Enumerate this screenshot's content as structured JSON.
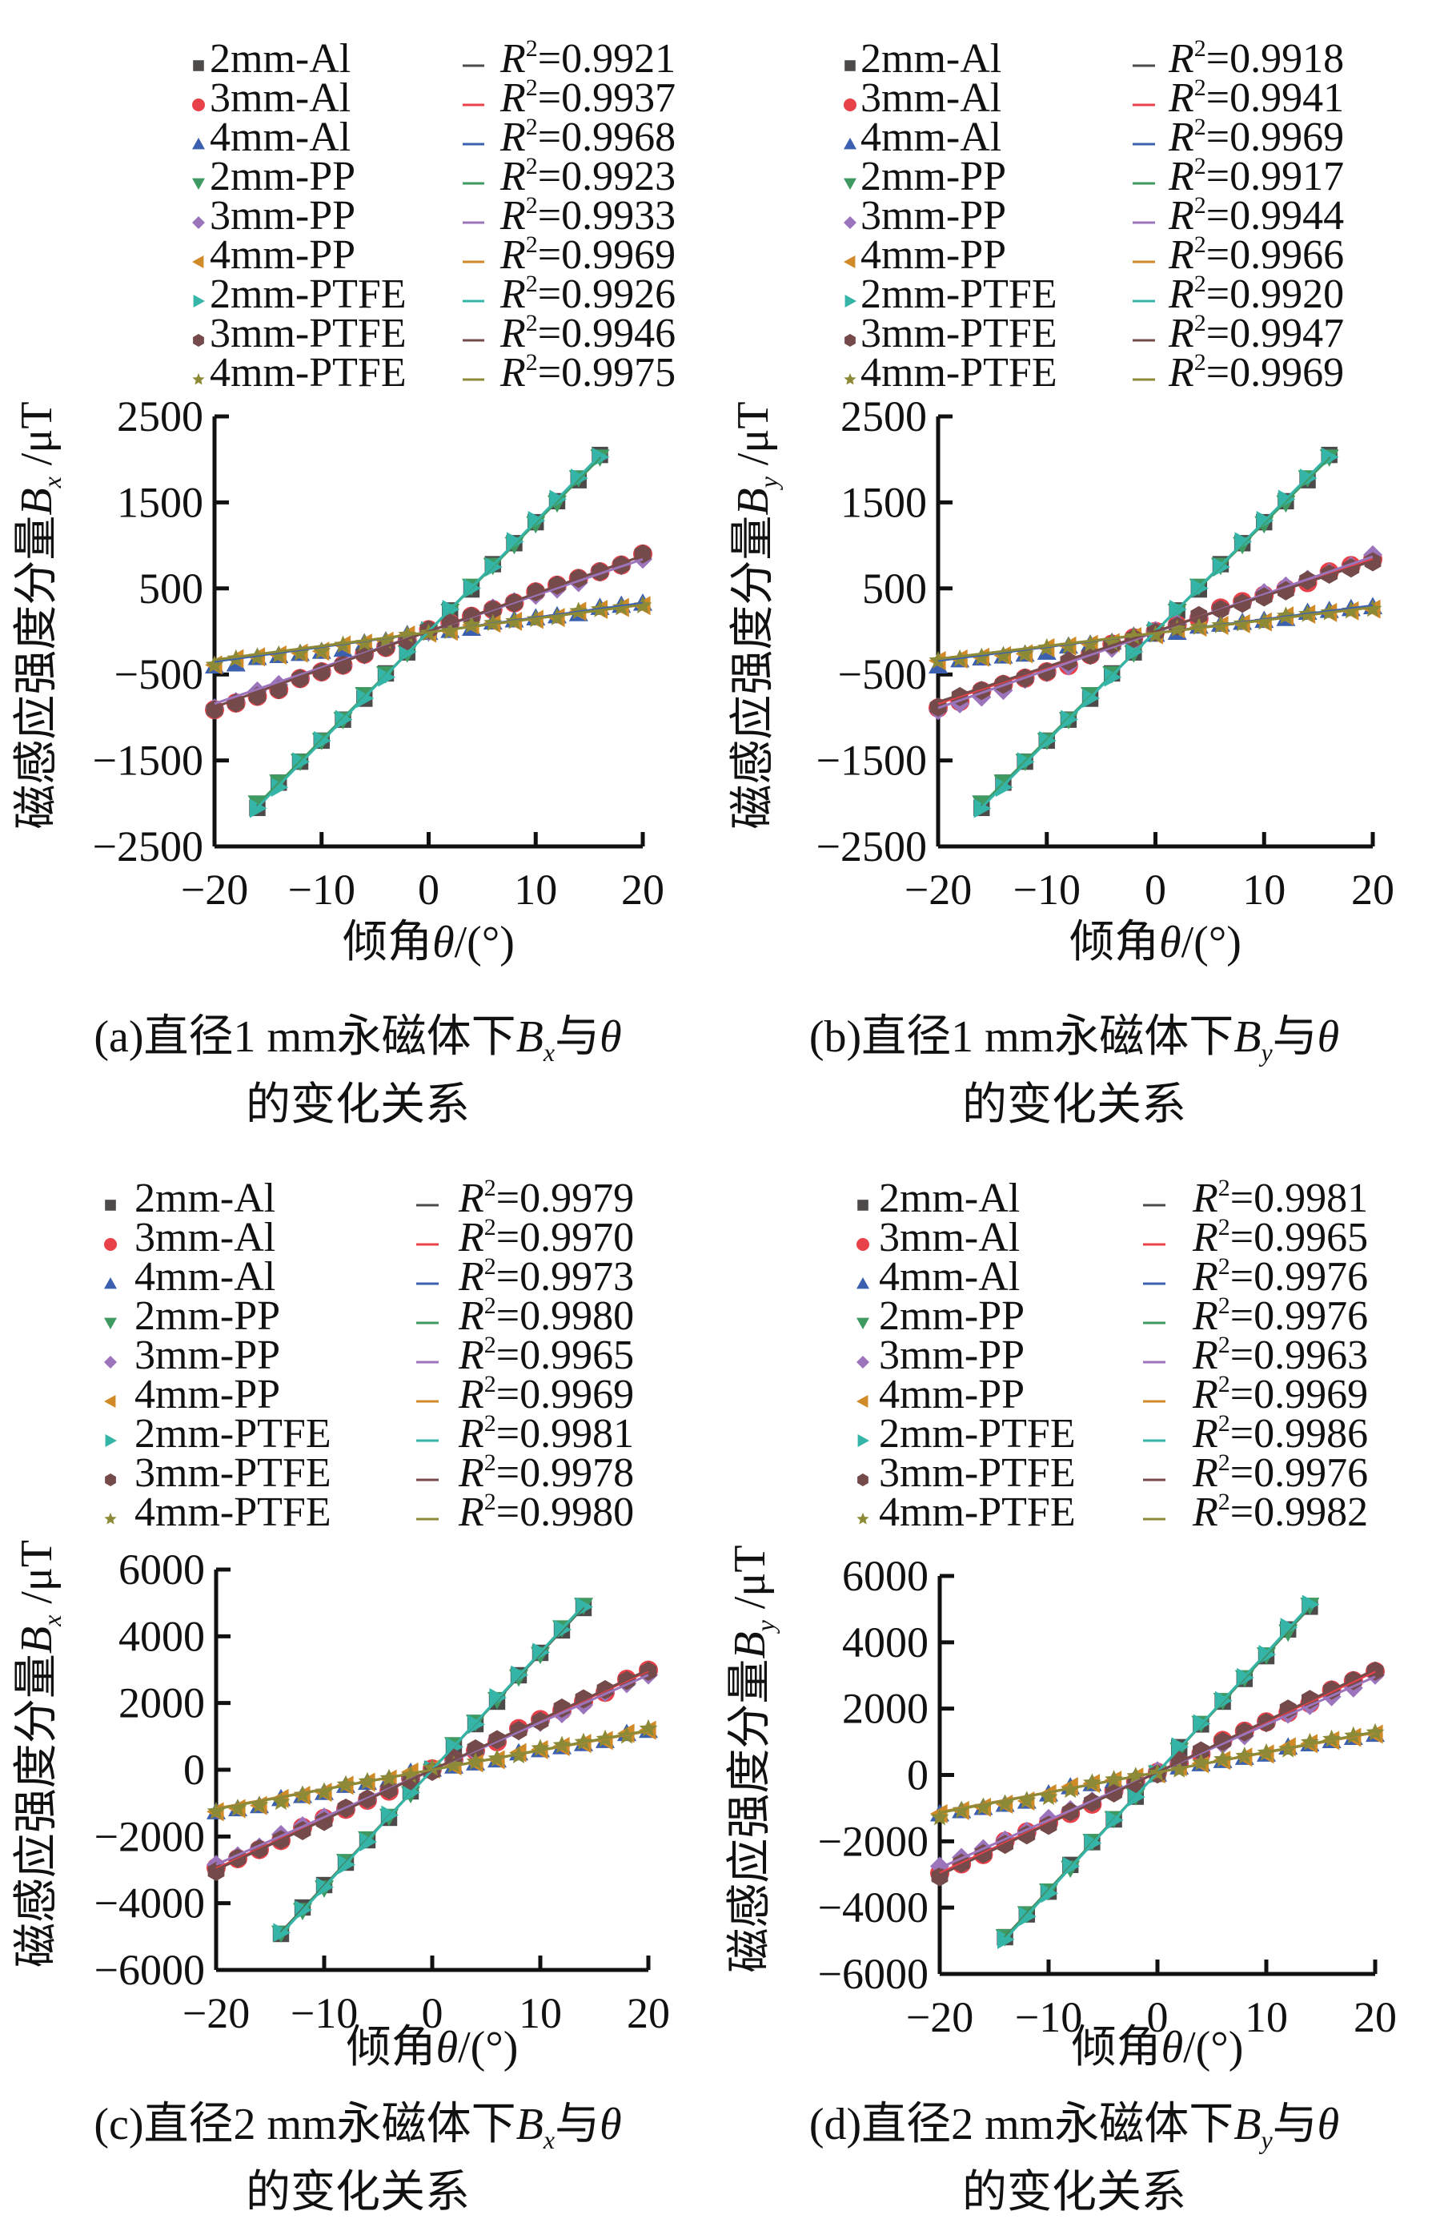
{
  "figure": {
    "series_style": [
      {
        "name": "2mm-Al",
        "marker": "square",
        "color": "#4d4a4a"
      },
      {
        "name": "3mm-Al",
        "marker": "circle",
        "color": "#e8414a"
      },
      {
        "name": "4mm-Al",
        "marker": "triangle-up",
        "color": "#3b60b0"
      },
      {
        "name": "2mm-PP",
        "marker": "triangle-down",
        "color": "#3f9a62"
      },
      {
        "name": "3mm-PP",
        "marker": "diamond",
        "color": "#9b74bb"
      },
      {
        "name": "4mm-PP",
        "marker": "triangle-left",
        "color": "#d08a28"
      },
      {
        "name": "2mm-PTFE",
        "marker": "triangle-right",
        "color": "#35b4a8"
      },
      {
        "name": "3mm-PTFE",
        "marker": "hexagon",
        "color": "#744a4a"
      },
      {
        "name": "4mm-PTFE",
        "marker": "star",
        "color": "#8c8a36"
      }
    ]
  },
  "chart_data": [
    {
      "id": "a",
      "type": "scatter",
      "title": "",
      "caption_prefix": "(a)直径1 mm永磁体下",
      "caption_var": "B",
      "caption_sub": "x",
      "caption_mid": "与",
      "caption_theta": "θ",
      "caption_line2": "的变化关系",
      "xlabel": "倾角θ/(°)",
      "xlabel_cn": "倾角",
      "xlabel_var": "θ",
      "xlabel_unit": "/(°)",
      "ylabel_cn": "磁感应强度分量",
      "ylabel_var": "B",
      "ylabel_sub": "x",
      "ylabel_unit": " /μT",
      "xlim": [
        -20,
        20
      ],
      "ylim": [
        -2500,
        2500
      ],
      "xticks": [
        -20,
        -10,
        0,
        10,
        20
      ],
      "yticks": [
        -2500,
        -1500,
        -500,
        500,
        1500,
        2500
      ],
      "ytick_labels": [
        "−2500",
        "−1500",
        "−500",
        "500",
        "1500",
        "2500"
      ],
      "xtick_labels": [
        "−20",
        "−10",
        "0",
        "10",
        "20"
      ],
      "grid": false,
      "legend_position": "top",
      "r2": [
        "0.9921",
        "0.9937",
        "0.9968",
        "0.9923",
        "0.9933",
        "0.9969",
        "0.9926",
        "0.9946",
        "0.9975"
      ],
      "series": [
        {
          "name": "2mm-Al",
          "x_range": [
            -16,
            16
          ],
          "step": 2,
          "slope": 127,
          "intercept": 0
        },
        {
          "name": "3mm-Al",
          "x_range": [
            -20,
            20
          ],
          "step": 2,
          "slope": 44,
          "intercept": 0
        },
        {
          "name": "4mm-Al",
          "x_range": [
            -20,
            20
          ],
          "step": 2,
          "slope": 17,
          "intercept": -10
        },
        {
          "name": "2mm-PP",
          "x_range": [
            -16,
            16
          ],
          "step": 2,
          "slope": 126,
          "intercept": 0
        },
        {
          "name": "3mm-PP",
          "x_range": [
            -20,
            20
          ],
          "step": 2,
          "slope": 42,
          "intercept": 0
        },
        {
          "name": "4mm-PP",
          "x_range": [
            -20,
            20
          ],
          "step": 2,
          "slope": 16,
          "intercept": -10
        },
        {
          "name": "2mm-PTFE",
          "x_range": [
            -16,
            16
          ],
          "step": 2,
          "slope": 128,
          "intercept": 0
        },
        {
          "name": "3mm-PTFE",
          "x_range": [
            -20,
            20
          ],
          "step": 2,
          "slope": 44,
          "intercept": 0
        },
        {
          "name": "4mm-PTFE",
          "x_range": [
            -20,
            20
          ],
          "step": 2,
          "slope": 16,
          "intercept": -10
        }
      ]
    },
    {
      "id": "b",
      "type": "scatter",
      "title": "",
      "caption_prefix": "(b)直径1 mm永磁体下",
      "caption_var": "B",
      "caption_sub": "y",
      "caption_mid": "与",
      "caption_theta": "θ",
      "caption_line2": "的变化关系",
      "xlabel": "倾角θ/(°)",
      "xlabel_cn": "倾角",
      "xlabel_var": "θ",
      "xlabel_unit": "/(°)",
      "ylabel_cn": "磁感应强度分量",
      "ylabel_var": "B",
      "ylabel_sub": "y",
      "ylabel_unit": " /μT",
      "xlim": [
        -20,
        20
      ],
      "ylim": [
        -2500,
        2500
      ],
      "xticks": [
        -20,
        -10,
        0,
        10,
        20
      ],
      "yticks": [
        -2500,
        -1500,
        -500,
        500,
        1500,
        2500
      ],
      "ytick_labels": [
        "−2500",
        "−1500",
        "−500",
        "500",
        "1500",
        "2500"
      ],
      "xtick_labels": [
        "−20",
        "−10",
        "0",
        "10",
        "20"
      ],
      "grid": false,
      "legend_position": "top",
      "r2": [
        "0.9918",
        "0.9941",
        "0.9969",
        "0.9917",
        "0.9944",
        "0.9966",
        "0.9920",
        "0.9947",
        "0.9969"
      ],
      "series": [
        {
          "name": "2mm-Al",
          "x_range": [
            -16,
            16
          ],
          "step": 2,
          "slope": 127,
          "intercept": 0
        },
        {
          "name": "3mm-Al",
          "x_range": [
            -20,
            20
          ],
          "step": 2,
          "slope": 42,
          "intercept": 0
        },
        {
          "name": "4mm-Al",
          "x_range": [
            -20,
            20
          ],
          "step": 2,
          "slope": 16,
          "intercept": -20
        },
        {
          "name": "2mm-PP",
          "x_range": [
            -16,
            16
          ],
          "step": 2,
          "slope": 126,
          "intercept": 0
        },
        {
          "name": "3mm-PP",
          "x_range": [
            -20,
            20
          ],
          "step": 2,
          "slope": 44,
          "intercept": -10
        },
        {
          "name": "4mm-PP",
          "x_range": [
            -20,
            20
          ],
          "step": 2,
          "slope": 15,
          "intercept": -20
        },
        {
          "name": "2mm-PTFE",
          "x_range": [
            -16,
            16
          ],
          "step": 2,
          "slope": 128,
          "intercept": 0
        },
        {
          "name": "3mm-PTFE",
          "x_range": [
            -20,
            20
          ],
          "step": 2,
          "slope": 41,
          "intercept": 0
        },
        {
          "name": "4mm-PTFE",
          "x_range": [
            -20,
            20
          ],
          "step": 2,
          "slope": 15,
          "intercept": -20
        }
      ]
    },
    {
      "id": "c",
      "type": "scatter",
      "title": "",
      "caption_prefix": "(c)直径2 mm永磁体下",
      "caption_var": "B",
      "caption_sub": "x",
      "caption_mid": "与",
      "caption_theta": "θ",
      "caption_line2": "的变化关系",
      "xlabel": "倾角θ/(°)",
      "xlabel_cn": "倾角",
      "xlabel_var": "θ",
      "xlabel_unit": "/(°)",
      "ylabel_cn": "磁感应强度分量",
      "ylabel_var": "B",
      "ylabel_sub": "x",
      "ylabel_unit": " /μT",
      "xlim": [
        -20,
        20
      ],
      "ylim": [
        -6000,
        6000
      ],
      "xticks": [
        -20,
        -10,
        0,
        10,
        20
      ],
      "yticks": [
        -6000,
        -4000,
        -2000,
        0,
        2000,
        4000,
        6000
      ],
      "ytick_labels": [
        "−6000",
        "−4000",
        "−2000",
        "0",
        "2000",
        "4000",
        "6000"
      ],
      "xtick_labels": [
        "−20",
        "−10",
        "0",
        "10",
        "20"
      ],
      "grid": false,
      "legend_position": "top",
      "r2": [
        "0.9979",
        "0.9970",
        "0.9973",
        "0.9980",
        "0.9965",
        "0.9969",
        "0.9981",
        "0.9978",
        "0.9980"
      ],
      "series": [
        {
          "name": "2mm-Al",
          "x_range": [
            -14,
            14
          ],
          "step": 2,
          "slope": 348,
          "intercept": 0
        },
        {
          "name": "3mm-Al",
          "x_range": [
            -20,
            20
          ],
          "step": 2,
          "slope": 148,
          "intercept": 0
        },
        {
          "name": "4mm-Al",
          "x_range": [
            -20,
            20
          ],
          "step": 2,
          "slope": 58,
          "intercept": 0
        },
        {
          "name": "2mm-PP",
          "x_range": [
            -14,
            14
          ],
          "step": 2,
          "slope": 350,
          "intercept": 0
        },
        {
          "name": "3mm-PP",
          "x_range": [
            -20,
            20
          ],
          "step": 2,
          "slope": 142,
          "intercept": 0
        },
        {
          "name": "4mm-PP",
          "x_range": [
            -20,
            20
          ],
          "step": 2,
          "slope": 58,
          "intercept": 0
        },
        {
          "name": "2mm-PTFE",
          "x_range": [
            -14,
            14
          ],
          "step": 2,
          "slope": 352,
          "intercept": 0
        },
        {
          "name": "3mm-PTFE",
          "x_range": [
            -20,
            20
          ],
          "step": 2,
          "slope": 150,
          "intercept": 0
        },
        {
          "name": "4mm-PTFE",
          "x_range": [
            -20,
            20
          ],
          "step": 2,
          "slope": 59,
          "intercept": 0
        }
      ]
    },
    {
      "id": "d",
      "type": "scatter",
      "title": "",
      "caption_prefix": "(d)直径2 mm永磁体下",
      "caption_var": "B",
      "caption_sub": "y",
      "caption_mid": "与",
      "caption_theta": "θ",
      "caption_line2": "的变化关系",
      "xlabel": "倾角θ/(°)",
      "xlabel_cn": "倾角",
      "xlabel_var": "θ",
      "xlabel_unit": "/(°)",
      "ylabel_cn": "磁感应强度分量",
      "ylabel_var": "B",
      "ylabel_sub": "y",
      "ylabel_unit": " /μT",
      "xlim": [
        -20,
        20
      ],
      "ylim": [
        -6000,
        6000
      ],
      "xticks": [
        -20,
        -10,
        0,
        10,
        20
      ],
      "yticks": [
        -6000,
        -4000,
        -2000,
        0,
        2000,
        4000,
        6000
      ],
      "ytick_labels": [
        "−6000",
        "−4000",
        "−2000",
        "0",
        "2000",
        "4000",
        "6000"
      ],
      "xtick_labels": [
        "−20",
        "−10",
        "0",
        "10",
        "20"
      ],
      "grid": false,
      "legend_position": "top",
      "r2": [
        "0.9981",
        "0.9965",
        "0.9976",
        "0.9976",
        "0.9963",
        "0.9969",
        "0.9986",
        "0.9976",
        "0.9982"
      ],
      "series": [
        {
          "name": "2mm-Al",
          "x_range": [
            -14,
            14
          ],
          "step": 2,
          "slope": 355,
          "intercept": 80
        },
        {
          "name": "3mm-Al",
          "x_range": [
            -20,
            20
          ],
          "step": 2,
          "slope": 152,
          "intercept": 80
        },
        {
          "name": "4mm-Al",
          "x_range": [
            -20,
            20
          ],
          "step": 2,
          "slope": 60,
          "intercept": 80
        },
        {
          "name": "2mm-PP",
          "x_range": [
            -14,
            14
          ],
          "step": 2,
          "slope": 356,
          "intercept": 80
        },
        {
          "name": "3mm-PP",
          "x_range": [
            -20,
            20
          ],
          "step": 2,
          "slope": 144,
          "intercept": 80
        },
        {
          "name": "4mm-PP",
          "x_range": [
            -20,
            20
          ],
          "step": 2,
          "slope": 60,
          "intercept": 80
        },
        {
          "name": "2mm-PTFE",
          "x_range": [
            -14,
            14
          ],
          "step": 2,
          "slope": 360,
          "intercept": 80
        },
        {
          "name": "3mm-PTFE",
          "x_range": [
            -20,
            20
          ],
          "step": 2,
          "slope": 155,
          "intercept": 80
        },
        {
          "name": "4mm-PTFE",
          "x_range": [
            -20,
            20
          ],
          "step": 2,
          "slope": 61,
          "intercept": 80
        }
      ]
    }
  ]
}
